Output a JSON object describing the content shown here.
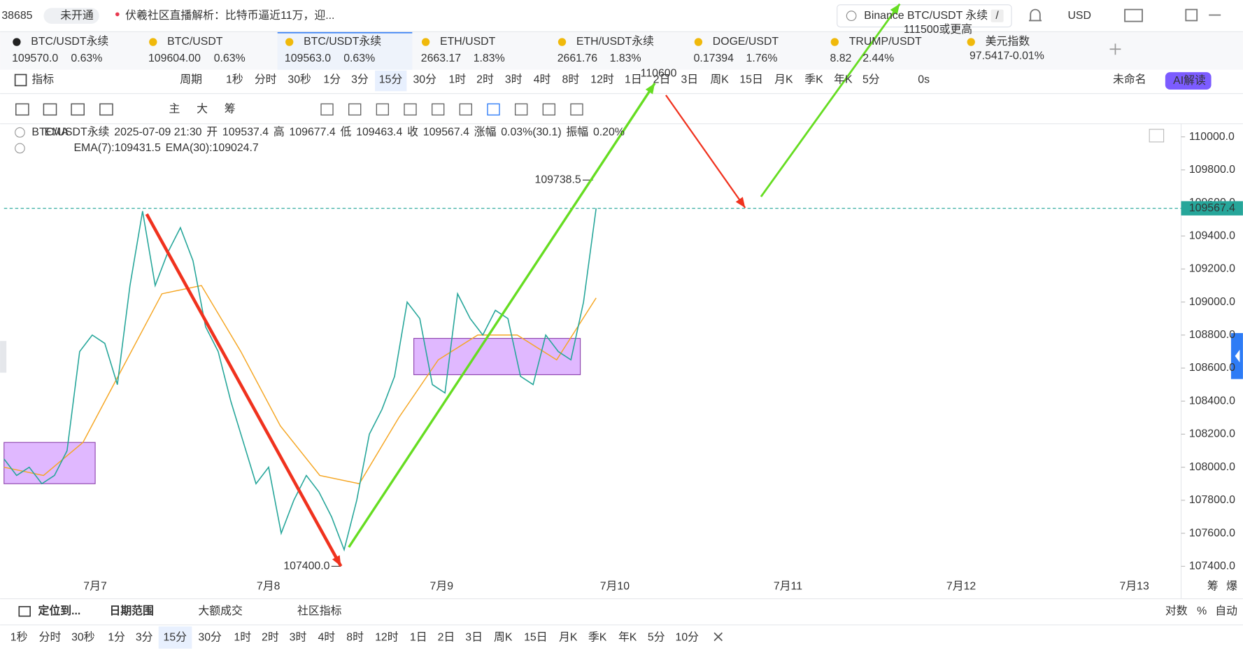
{
  "top_bar": {
    "ticker_fragment": "38685",
    "status": "未开通",
    "news": "伏羲社区直播解析：比特币逼近11万，迎...",
    "search_placeholder": "Binance BTC/USDT 永续",
    "search_shortcut": "/",
    "currency": "USD"
  },
  "tabs": [
    {
      "name": "BTC/USDT永续",
      "price": "109570.0",
      "change": "0.63%",
      "color": "#e8384f"
    },
    {
      "name": "BTC/USDT",
      "price": "109604.00",
      "change": "0.63%",
      "color": "#e8384f"
    },
    {
      "name": "BTC/USDT永续",
      "price": "109563.0",
      "change": "0.63%",
      "color": "#16a37f"
    },
    {
      "name": "ETH/USDT",
      "price": "2663.17",
      "change": "1.83%",
      "color": "#e8384f"
    },
    {
      "name": "ETH/USDT永续",
      "price": "2661.76",
      "change": "1.83%",
      "color": "#16a37f"
    },
    {
      "name": "DOGE/USDT",
      "price": "0.17394",
      "change": "1.76%",
      "color": "#e8384f"
    },
    {
      "name": "TRUMP/USDT",
      "price": "8.82",
      "change": "2.44%",
      "color": "#16a37f"
    },
    {
      "name": "美元指数",
      "price": "97.5417",
      "change": "-0.01%",
      "color": "#16a37f"
    }
  ],
  "active_tab": 2,
  "toolbar": {
    "indicator": "指标",
    "period": "周期",
    "intervals": [
      "1秒",
      "分时",
      "30秒",
      "1分",
      "3分",
      "15分",
      "30分",
      "1时",
      "2时",
      "3时",
      "4时",
      "8时",
      "12时",
      "1日",
      "2日",
      "3日",
      "周K",
      "15日",
      "月K",
      "季K",
      "年K",
      "5分"
    ],
    "active_interval": 5,
    "countdown": "0s",
    "layout_name": "未命名",
    "ai": "AI解读"
  },
  "drawing_tools": {
    "main": "主",
    "big": "大",
    "chips": "筹"
  },
  "chart": {
    "symbol": "BTC/USDT永续",
    "time": "2025-07-09 21:30",
    "ohlc": [
      {
        "label": "开",
        "value": "109537.4"
      },
      {
        "label": "高",
        "value": "109677.4"
      },
      {
        "label": "低",
        "value": "109463.4"
      },
      {
        "label": "收",
        "value": "109567.4"
      },
      {
        "label": "涨幅",
        "value": "0.03%(30.1)"
      },
      {
        "label": "振幅",
        "value": "0.20%"
      }
    ],
    "ema_label": "EMA",
    "ema_values": [
      {
        "text": "EMA(7):109431.5",
        "color": "#16a37f"
      },
      {
        "text": "EMA(30):109024.7",
        "color": "#f0a020"
      }
    ],
    "ylim": [
      107300,
      110070
    ],
    "yticks": [
      {
        "value": 107400,
        "label": "107400.0"
      },
      {
        "value": 107600,
        "label": "107600.0"
      },
      {
        "value": 107800,
        "label": "107800.0"
      },
      {
        "value": 108000,
        "label": "108000.0"
      },
      {
        "value": 108200,
        "label": "108200.0"
      },
      {
        "value": 108400,
        "label": "108400.0"
      },
      {
        "value": 108600,
        "label": "108600.0"
      },
      {
        "value": 108800,
        "label": "108800.0"
      },
      {
        "value": 109000,
        "label": "109000.0"
      },
      {
        "value": 109200,
        "label": "109200.0"
      },
      {
        "value": 109400,
        "label": "109400.0"
      },
      {
        "value": 109600,
        "label": "109600.0"
      },
      {
        "value": 109800,
        "label": "109800.0"
      },
      {
        "value": 110000,
        "label": "110000.0"
      }
    ],
    "xticks": [
      "7月7",
      "7月8",
      "7月9",
      "7月10",
      "7月11",
      "7月12",
      "7月13"
    ],
    "price": {
      "color": "#26a69a",
      "values": [
        108050,
        107950,
        108000,
        107900,
        107950,
        108100,
        108700,
        108800,
        108750,
        108500,
        109100,
        109550,
        109100,
        109300,
        109450,
        109250,
        108850,
        108700,
        108400,
        108150,
        107900,
        108000,
        107600,
        107800,
        107950,
        107850,
        107700,
        107500,
        107800,
        108200,
        108350,
        108550,
        109000,
        108900,
        108500,
        108450,
        109050,
        108900,
        108800,
        108950,
        108900,
        108550,
        108500,
        108800,
        108700,
        108650,
        109000,
        109567.4
      ]
    },
    "ema30": {
      "color": "#f5a623",
      "values": [
        108000,
        107950,
        108150,
        108600,
        109050,
        109100,
        108700,
        108250,
        107950,
        107900,
        108300,
        108650,
        108800,
        108800,
        108650,
        109024.7
      ]
    },
    "zones": [
      {
        "low": 107900,
        "high": 108150
      },
      {
        "low": 108560,
        "high": 108780
      }
    ],
    "last_price": 109567.4,
    "last_price_label": "109567.4",
    "high": 109738.5,
    "high_label": "109738.5",
    "low": 107400,
    "low_label": "107400.0",
    "annotations": [
      "110600",
      "111500或更高"
    ],
    "axis_corner": [
      "筹",
      "爆"
    ]
  },
  "bottom": {
    "locate": "定位到...",
    "date_range": "日期范围",
    "large_trades": "大额成交",
    "community": "社区指标",
    "scale_options": [
      "对数",
      "%",
      "自动"
    ],
    "intervals": [
      "1秒",
      "分时",
      "30秒",
      "1分",
      "3分",
      "15分",
      "30分",
      "1时",
      "2时",
      "3时",
      "4时",
      "8时",
      "12时",
      "1日",
      "2日",
      "3日",
      "周K",
      "15日",
      "月K",
      "季K",
      "年K",
      "5分",
      "10分"
    ],
    "active_interval": 5
  }
}
